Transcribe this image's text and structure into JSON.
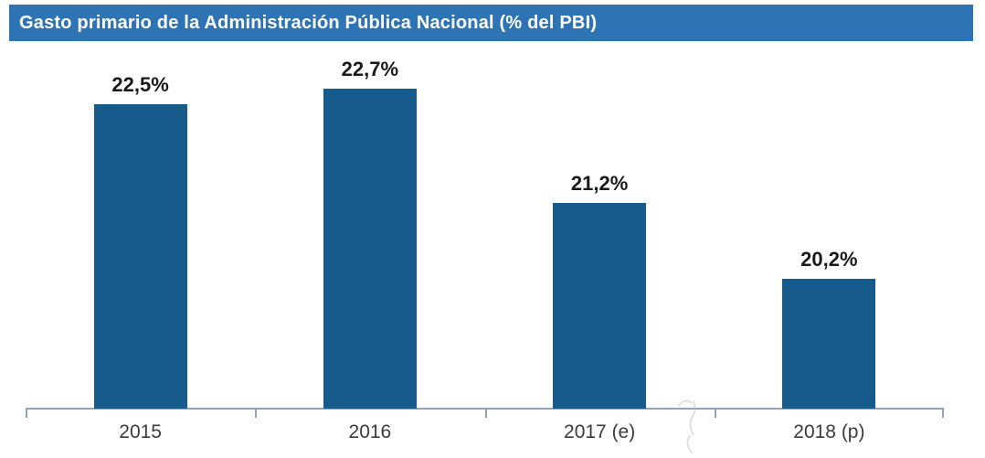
{
  "title": "Gasto primario de la Administración Pública Nacional (% del PBI)",
  "colors": {
    "background": "#FFFFFF",
    "title_bg": "#2E74B5",
    "title_text": "#FFFFFF",
    "bar_fill": "#175A8C",
    "axis_line": "#8FA3B8",
    "value_label": "#1A1A1A",
    "category_label": "#3B3B3B"
  },
  "chart_data": {
    "type": "bar",
    "title": "Gasto primario de la Administración Pública Nacional (% del PBI)",
    "categories": [
      "2015",
      "2016",
      "2017 (e)",
      "2018 (p)"
    ],
    "values": [
      22.5,
      22.7,
      21.2,
      20.2
    ],
    "value_labels": [
      "22,5%",
      "22,7%",
      "21,2%",
      "20,2%"
    ],
    "xlabel": "",
    "ylabel": "",
    "ylim": [
      18.5,
      23.3
    ],
    "grid": false,
    "legend": false,
    "value_labels_position": "above-bars",
    "axis_ticks": "category-boundaries"
  }
}
